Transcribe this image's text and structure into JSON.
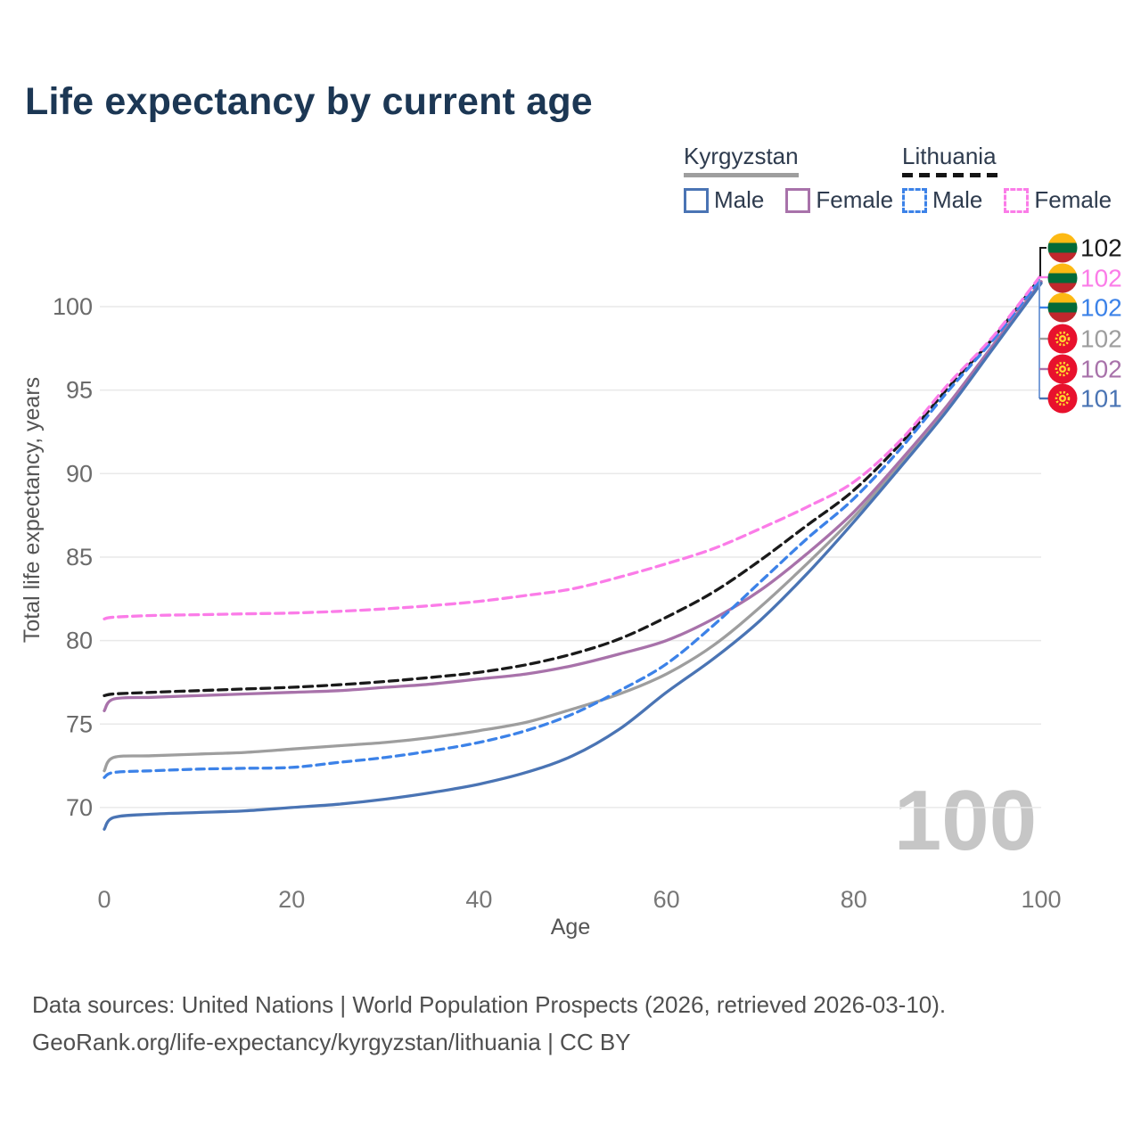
{
  "title": "Life expectancy by current age",
  "watermark": "100",
  "legend": {
    "groups": [
      {
        "country": "Kyrgyzstan",
        "line_style": "solid",
        "underline_color": "#9e9e9e",
        "items": [
          {
            "label": "Male",
            "color": "#4a74b4",
            "dashed": false
          },
          {
            "label": "Female",
            "color": "#a872aa",
            "dashed": false
          }
        ]
      },
      {
        "country": "Lithuania",
        "line_style": "dashed",
        "underline_color": "#141414",
        "items": [
          {
            "label": "Male",
            "color": "#3c82e8",
            "dashed": true
          },
          {
            "label": "Female",
            "color": "#fb7ce8",
            "dashed": true
          }
        ]
      }
    ]
  },
  "chart_data": {
    "type": "line",
    "title": "Life expectancy by current age",
    "xlabel": "Age",
    "ylabel": "Total life expectancy, years",
    "x_ticks": [
      0,
      20,
      40,
      60,
      80,
      100
    ],
    "y_ticks": [
      70,
      75,
      80,
      85,
      90,
      95,
      100
    ],
    "xlim": [
      0,
      100
    ],
    "ylim": [
      70,
      100
    ],
    "grid": "horizontal",
    "legend_position": "top-right",
    "ages": [
      0,
      1,
      5,
      10,
      15,
      20,
      25,
      30,
      35,
      40,
      45,
      50,
      55,
      60,
      65,
      70,
      75,
      80,
      85,
      90,
      95,
      100
    ],
    "series": [
      {
        "id": "kg-total",
        "country": "Kyrgyzstan",
        "sex": "All",
        "color": "#9e9e9e",
        "dash": null,
        "values": [
          72.2,
          73.0,
          73.1,
          73.2,
          73.3,
          73.5,
          73.7,
          73.9,
          74.2,
          74.6,
          75.1,
          75.9,
          76.8,
          78.0,
          79.7,
          82.0,
          84.6,
          87.4,
          90.6,
          94.0,
          97.7,
          101.5
        ],
        "end_value": 102
      },
      {
        "id": "kg-female",
        "country": "Kyrgyzstan",
        "sex": "Female",
        "color": "#a872aa",
        "dash": null,
        "values": [
          75.8,
          76.5,
          76.6,
          76.7,
          76.8,
          76.9,
          77.0,
          77.2,
          77.4,
          77.7,
          78.0,
          78.5,
          79.2,
          80.0,
          81.3,
          83.0,
          85.2,
          87.7,
          90.8,
          94.1,
          97.8,
          101.5
        ],
        "end_value": 102
      },
      {
        "id": "kg-male",
        "country": "Kyrgyzstan",
        "sex": "Male",
        "color": "#4a74b4",
        "dash": null,
        "values": [
          68.7,
          69.4,
          69.6,
          69.7,
          69.8,
          70.0,
          70.2,
          70.5,
          70.9,
          71.4,
          72.1,
          73.1,
          74.7,
          76.9,
          78.9,
          81.2,
          84.0,
          87.1,
          90.4,
          93.8,
          97.6,
          101.4
        ],
        "end_value": 101
      },
      {
        "id": "lt-total",
        "country": "Lithuania",
        "sex": "All",
        "color": "#1a1a1a",
        "dash": [
          10,
          6
        ],
        "values": [
          76.7,
          76.8,
          76.9,
          77.0,
          77.1,
          77.2,
          77.35,
          77.55,
          77.8,
          78.1,
          78.55,
          79.2,
          80.1,
          81.4,
          82.9,
          84.8,
          86.9,
          89.0,
          91.8,
          95.1,
          98.2,
          101.8
        ],
        "end_value": 102
      },
      {
        "id": "lt-male",
        "country": "Lithuania",
        "sex": "Male",
        "color": "#3c82e8",
        "dash": [
          9,
          6
        ],
        "values": [
          71.8,
          72.1,
          72.2,
          72.3,
          72.35,
          72.4,
          72.7,
          73.0,
          73.4,
          73.9,
          74.6,
          75.6,
          77.0,
          78.6,
          80.9,
          83.5,
          86.1,
          88.5,
          91.5,
          94.9,
          98.1,
          101.7
        ],
        "end_value": 102
      },
      {
        "id": "lt-female",
        "country": "Lithuania",
        "sex": "Female",
        "color": "#fb7ce8",
        "dash": [
          10,
          6
        ],
        "values": [
          81.3,
          81.4,
          81.5,
          81.55,
          81.6,
          81.65,
          81.75,
          81.9,
          82.1,
          82.35,
          82.7,
          83.1,
          83.8,
          84.6,
          85.5,
          86.7,
          88.0,
          89.5,
          92.0,
          95.3,
          98.3,
          101.9
        ],
        "end_value": 102
      }
    ],
    "end_labels": [
      {
        "flag": "lithuania",
        "value": "102",
        "color": "#1a1a1a",
        "series": "lt-total"
      },
      {
        "flag": "lithuania",
        "value": "102",
        "color": "#fb7ce8",
        "series": "lt-female"
      },
      {
        "flag": "lithuania",
        "value": "102",
        "color": "#3c82e8",
        "series": "lt-male"
      },
      {
        "flag": "kyrgyzstan",
        "value": "102",
        "color": "#9e9e9e",
        "series": "kg-total"
      },
      {
        "flag": "kyrgyzstan",
        "value": "102",
        "color": "#a872aa",
        "series": "kg-female"
      },
      {
        "flag": "kyrgyzstan",
        "value": "101",
        "color": "#4a74b4",
        "series": "kg-male"
      }
    ],
    "flag_colors": {
      "lithuania": [
        "#FDB913",
        "#046A38",
        "#C1272D"
      ],
      "kyrgyzstan": {
        "field": "#E8112D",
        "sun": "#FFD92E"
      }
    }
  },
  "footer": {
    "line1": "Data sources: United Nations | World Population Prospects (2026, retrieved 2026-03-10).",
    "line2": "GeoRank.org/life-expectancy/kyrgyzstan/lithuania | CC BY"
  }
}
